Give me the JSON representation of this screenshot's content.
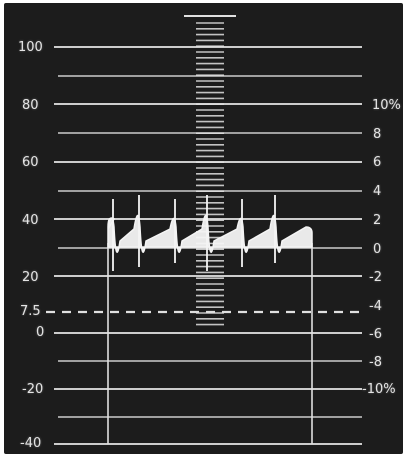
{
  "scale": {
    "left_labels": [
      "100",
      "80",
      "60",
      "40",
      "20",
      "7.5",
      "0",
      "-20",
      "-40"
    ],
    "right_labels": [
      "10%",
      "8",
      "6",
      "4",
      "2",
      "0",
      "-2",
      "-4",
      "-6",
      "-8",
      "-10%"
    ]
  },
  "colors": {
    "background": "#1c1c1c",
    "graticule": "#e0e0e0",
    "trace": "#f4f4f4"
  }
}
